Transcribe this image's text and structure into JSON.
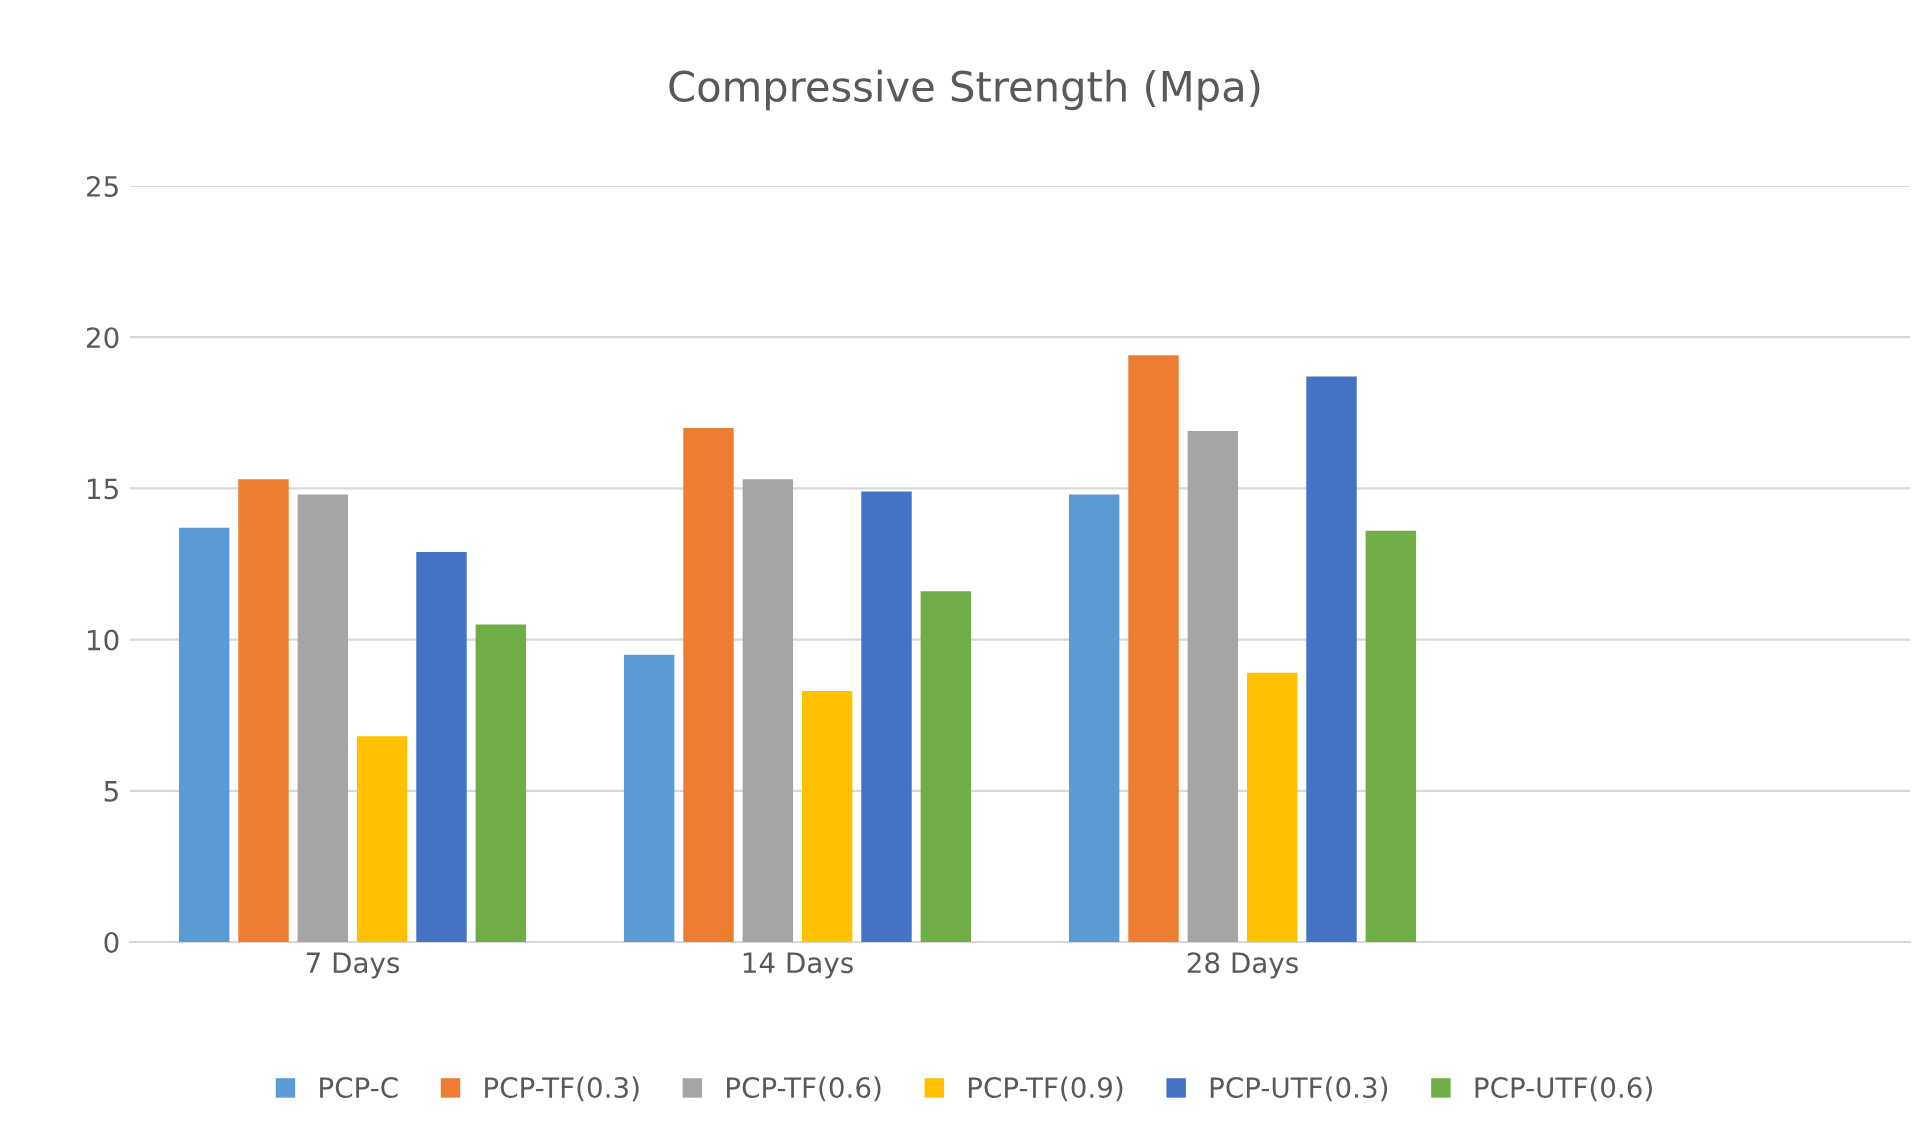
{
  "chart_data": {
    "type": "bar",
    "title": "Compressive Strength (Mpa)",
    "categories": [
      "7 Days",
      "14 Days",
      "28 Days",
      null
    ],
    "series": [
      {
        "name": "PCP-C",
        "color": "#5b9bd5",
        "values": [
          13.7,
          9.5,
          14.8,
          null
        ]
      },
      {
        "name": "PCP-TF(0.3)",
        "color": "#ed7d31",
        "values": [
          15.3,
          17.0,
          19.4,
          null
        ]
      },
      {
        "name": "PCP-TF(0.6)",
        "color": "#a5a5a5",
        "values": [
          14.8,
          15.3,
          16.9,
          null
        ]
      },
      {
        "name": "PCP-TF(0.9)",
        "color": "#ffc000",
        "values": [
          6.8,
          8.3,
          8.9,
          null
        ]
      },
      {
        "name": "PCP-UTF(0.3)",
        "color": "#4472c4",
        "values": [
          12.9,
          14.9,
          18.7,
          null
        ]
      },
      {
        "name": "PCP-UTF(0.6)",
        "color": "#70ad47",
        "values": [
          10.5,
          11.6,
          13.6,
          null
        ]
      }
    ],
    "ylim": [
      0,
      25
    ],
    "yticks": [
      0,
      5,
      10,
      15,
      20,
      25
    ],
    "grid": "y",
    "legend": "bottom"
  }
}
